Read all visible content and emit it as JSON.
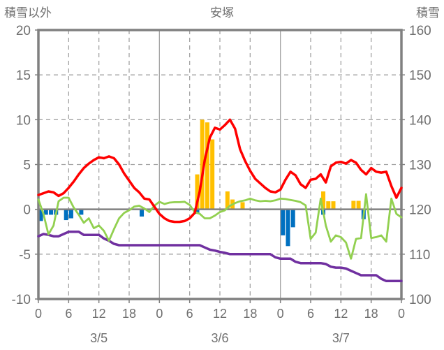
{
  "header": {
    "left_axis_title": "積雪以外",
    "chart_title": "安塚",
    "right_axis_title": "積雪"
  },
  "chart_data": {
    "type": "combo",
    "title": "安塚",
    "x_axis": {
      "unit": "hour",
      "range_hours": [
        0,
        72
      ],
      "hour_tick_labels": [
        "0",
        "6",
        "12",
        "18",
        "0",
        "6",
        "12",
        "18",
        "0",
        "6",
        "12",
        "18",
        "0"
      ],
      "day_labels": [
        "3/5",
        "3/6",
        "3/7"
      ]
    },
    "left_axis": {
      "title": "積雪以外",
      "range": [
        -10,
        20
      ],
      "ticks": [
        "20",
        "15",
        "10",
        "5",
        "0",
        "-5",
        "-10"
      ],
      "tick_values": [
        20,
        15,
        10,
        5,
        0,
        -5,
        -10
      ]
    },
    "right_axis": {
      "title": "積雪",
      "range": [
        100,
        160
      ],
      "ticks": [
        "160",
        "150",
        "140",
        "130",
        "120",
        "110",
        "100"
      ],
      "tick_values": [
        160,
        150,
        140,
        130,
        120,
        110,
        100
      ]
    },
    "grid": {
      "h_dashed_at": [
        15,
        10,
        5,
        -5
      ],
      "v_solid_day_starts": [
        24,
        48
      ],
      "v_dashed_every_hours": 6,
      "zero_line": 0
    },
    "colors": {
      "red_line": "#FF0000",
      "green_line": "#92D050",
      "purple_line": "#7030A0",
      "orange_bars": "#FFC000",
      "blue_bars": "#0070C0",
      "frame": "#808080",
      "grid": "#A3A3A3",
      "text": "#6f6f6f"
    },
    "series": [
      {
        "name": "red-line",
        "type": "line",
        "axis": "left",
        "color": "#FF0000",
        "values": [
          1.6,
          1.8,
          2.0,
          1.9,
          1.5,
          1.8,
          2.4,
          3.1,
          3.9,
          4.6,
          5.1,
          5.5,
          5.8,
          5.7,
          5.9,
          5.7,
          5.0,
          4.0,
          3.2,
          2.4,
          1.9,
          1.2,
          1.1,
          0.3,
          -0.5,
          -1.0,
          -1.3,
          -1.4,
          -1.4,
          -1.3,
          -1.0,
          -0.4,
          2.0,
          5.5,
          8.0,
          9.1,
          8.9,
          9.4,
          10.0,
          9.0,
          6.7,
          5.4,
          4.3,
          3.4,
          2.9,
          2.4,
          2.0,
          1.9,
          2.2,
          3.3,
          4.2,
          3.8,
          2.8,
          2.4,
          3.3,
          3.4,
          3.9,
          3.0,
          4.8,
          5.2,
          5.3,
          5.1,
          5.5,
          5.2,
          4.4,
          3.9,
          4.6,
          4.2,
          4.1,
          4.2,
          2.6,
          1.3,
          2.4
        ]
      },
      {
        "name": "green-line",
        "type": "line",
        "axis": "left",
        "color": "#92D050",
        "values": [
          1.1,
          -0.5,
          -2.8,
          -1.8,
          0.9,
          1.3,
          1.3,
          0.2,
          -0.6,
          -1.5,
          -1.0,
          -2.1,
          -1.8,
          -2.4,
          -3.5,
          -2.2,
          -1.0,
          -0.4,
          -0.1,
          0.3,
          0.4,
          0.1,
          -0.3,
          0.4,
          0.85,
          0.6,
          0.75,
          0.8,
          0.8,
          0.85,
          0.5,
          -0.3,
          -0.5,
          -1.0,
          -1.0,
          -0.7,
          -0.3,
          -0.1,
          0.4,
          0.7,
          0.9,
          1.0,
          1.2,
          1.0,
          0.9,
          0.95,
          0.9,
          1.0,
          1.2,
          1.15,
          1.05,
          0.95,
          0.8,
          0.45,
          -3.3,
          -2.6,
          1.2,
          -1.8,
          -3.6,
          -2.9,
          -3.1,
          -3.7,
          -5.5,
          -3.3,
          -3.2,
          1.7,
          -3.2,
          -3.1,
          -2.9,
          -3.6,
          1.2,
          -0.5,
          -0.9
        ]
      },
      {
        "name": "purple-line",
        "type": "line",
        "axis": "right",
        "color": "#7030A0",
        "values": [
          114,
          114.5,
          114.3,
          114,
          114,
          114.5,
          115,
          115,
          115,
          114.3,
          114.3,
          114.3,
          114.3,
          113.5,
          113,
          112.3,
          112,
          112,
          112,
          112,
          112,
          112,
          112,
          112,
          112,
          112,
          112,
          112,
          112,
          112,
          112,
          112,
          112,
          111.5,
          111,
          110.8,
          110.5,
          110.3,
          110,
          110,
          110,
          110,
          110,
          110,
          110,
          110,
          110,
          109.3,
          109,
          109,
          109,
          108.3,
          108,
          108,
          108,
          108,
          108,
          107.8,
          107.2,
          107,
          107,
          106.8,
          106.3,
          105.8,
          105.3,
          105.3,
          105.3,
          105.3,
          104.5,
          104,
          104,
          104,
          104
        ]
      },
      {
        "name": "orange-bars",
        "type": "bar",
        "axis": "left",
        "color": "#FFC000",
        "points": [
          [
            31,
            3.9
          ],
          [
            32,
            10
          ],
          [
            33,
            9.7
          ],
          [
            34,
            7.8
          ],
          [
            37,
            2.0
          ],
          [
            38,
            1.1
          ],
          [
            40,
            0.8
          ],
          [
            56,
            2.0
          ],
          [
            57,
            0.9
          ],
          [
            58,
            0.9
          ],
          [
            62,
            0.95
          ],
          [
            63,
            0.95
          ]
        ]
      },
      {
        "name": "blue-bars",
        "type": "bar",
        "axis": "left",
        "color": "#0070C0",
        "points": [
          [
            0,
            -1.3
          ],
          [
            1,
            -0.6
          ],
          [
            2,
            -0.6
          ],
          [
            3,
            -0.6
          ],
          [
            5,
            -1.2
          ],
          [
            6,
            -1.0
          ],
          [
            8,
            -0.6
          ],
          [
            20,
            -0.8
          ],
          [
            31,
            -0.5
          ],
          [
            48,
            -2.9
          ],
          [
            49,
            -4.1
          ],
          [
            50,
            -2.0
          ],
          [
            56,
            -0.6
          ],
          [
            64,
            -1.1
          ]
        ]
      }
    ]
  }
}
